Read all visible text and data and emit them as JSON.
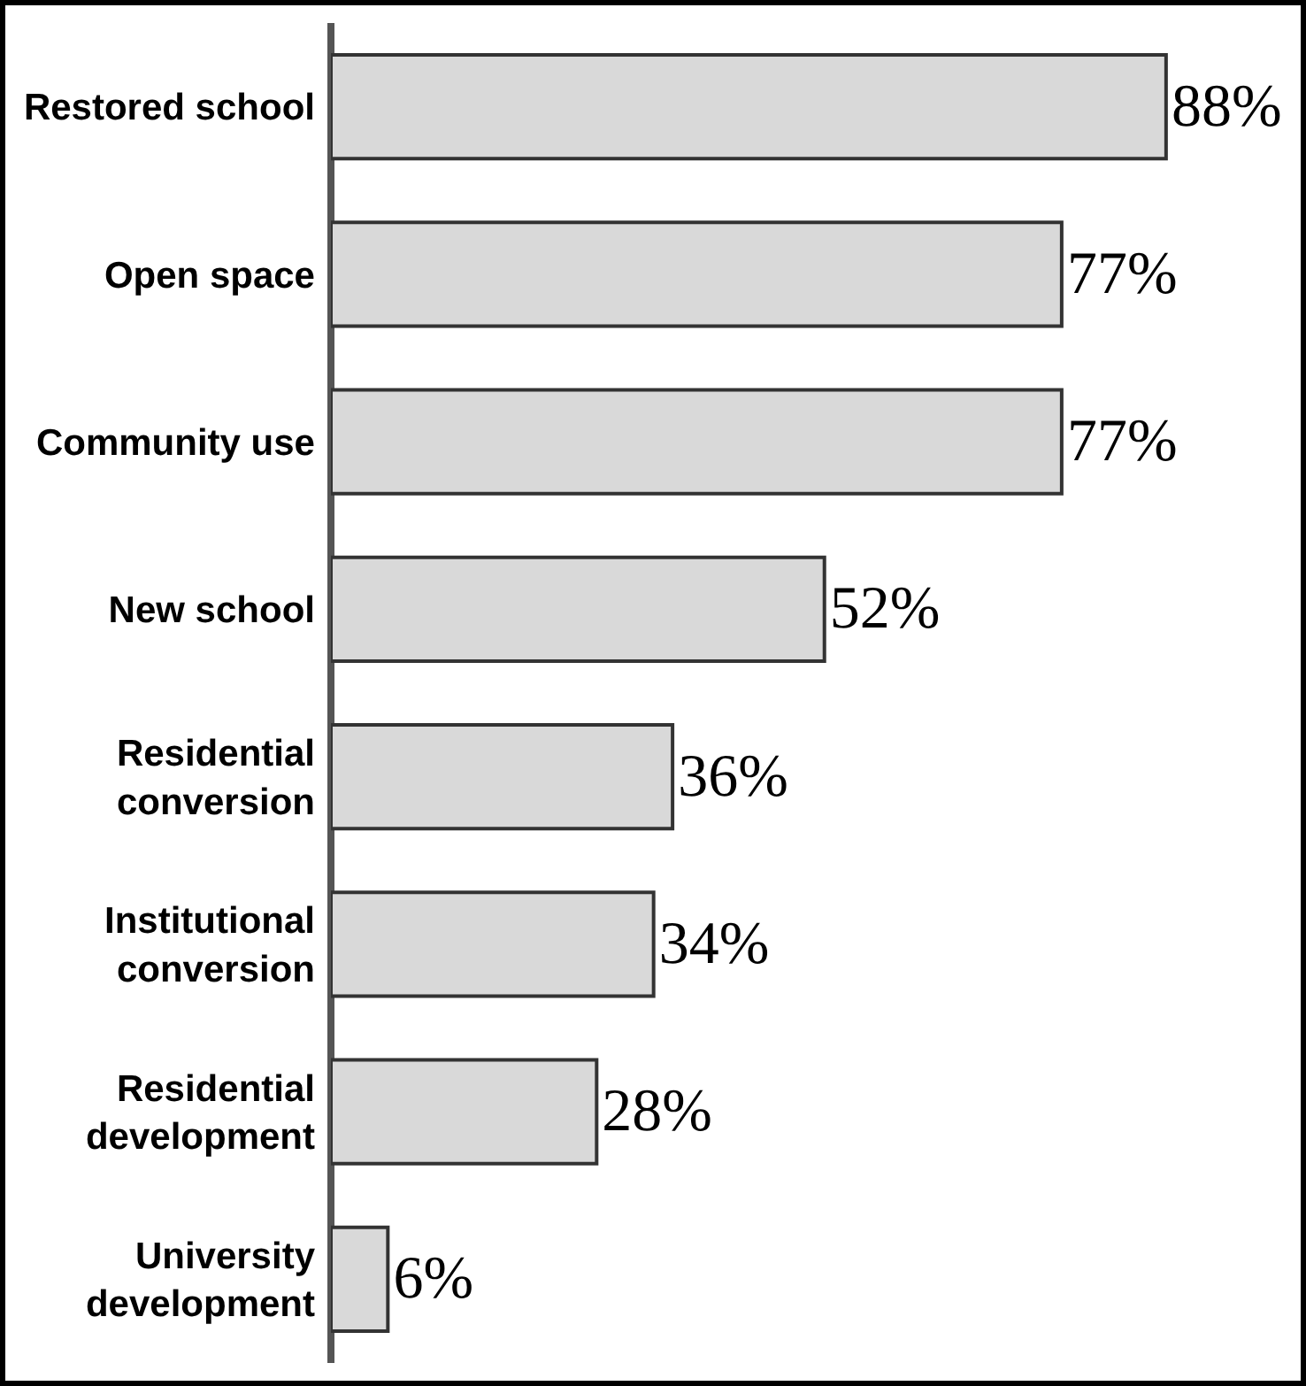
{
  "chart_data": {
    "type": "bar",
    "orientation": "horizontal",
    "categories": [
      "Restored school",
      "Open space",
      "Community use",
      "New school",
      "Residential\nconversion",
      "Institutional\nconversion",
      "Residential\ndevelopment",
      "University\ndevelopment"
    ],
    "values": [
      88,
      77,
      77,
      52,
      36,
      34,
      28,
      6
    ],
    "value_labels": [
      "88%",
      "77%",
      "77%",
      "52%",
      "36%",
      "34%",
      "28%",
      "6%"
    ],
    "color": "#d9d9d9",
    "grid": false,
    "legend": false
  }
}
